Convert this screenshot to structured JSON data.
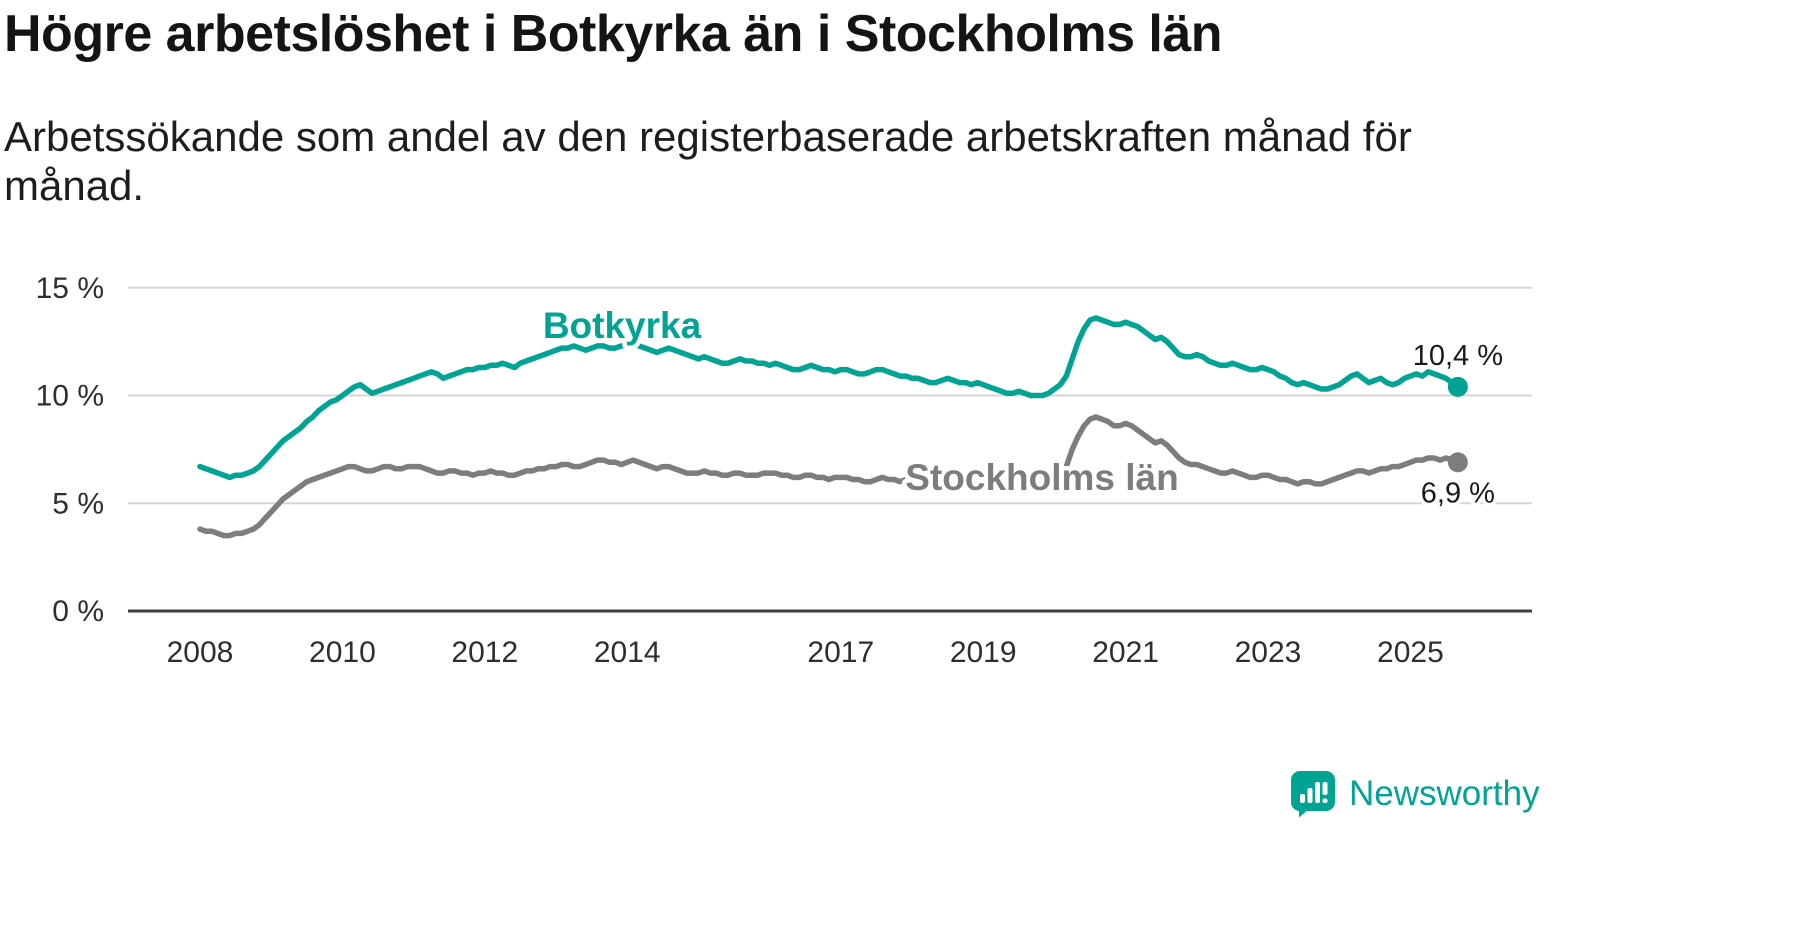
{
  "header": {
    "title": "Högre arbetslöshet i Botkyrka än i Stockholms län",
    "subtitle": "Arbetssökande som andel av den registerbaserade arbetskraften månad för månad."
  },
  "footer": {
    "brand": "Newsworthy",
    "logo_icon": "bar-chart-speech-bubble-icon"
  },
  "colors": {
    "botkyrka": "#00a394",
    "stockholm": "#7d7d7d",
    "grid": "#d6d6d6",
    "axis": "#3f3f3f",
    "tick_text": "#2e2e2e",
    "brand_teal": "#00a394"
  },
  "chart_data": {
    "type": "line",
    "title": "Högre arbetslöshet i Botkyrka än i Stockholms län",
    "subtitle": "Arbetssökande som andel av den registerbaserade arbetskraften månad för månad.",
    "x_start_year": 2008,
    "points_per_year": 12,
    "xticks": [
      2008,
      2010,
      2012,
      2014,
      2017,
      2019,
      2021,
      2023,
      2025
    ],
    "ylim": [
      0,
      15
    ],
    "yticks": [
      0,
      5,
      10,
      15
    ],
    "ytick_labels": [
      "0 %",
      "5 %",
      "10 %",
      "15 %"
    ],
    "grid": "horizontal-only",
    "legend_position": "inline-labels",
    "series": [
      {
        "name": "Botkyrka",
        "color": "#00a394",
        "end_label": "10,4 %",
        "last_value": 10.4,
        "values": [
          6.7,
          6.6,
          6.5,
          6.4,
          6.3,
          6.2,
          6.3,
          6.3,
          6.4,
          6.5,
          6.7,
          7.0,
          7.3,
          7.6,
          7.9,
          8.1,
          8.3,
          8.5,
          8.8,
          9.0,
          9.3,
          9.5,
          9.7,
          9.8,
          10.0,
          10.2,
          10.4,
          10.5,
          10.3,
          10.1,
          10.2,
          10.3,
          10.4,
          10.5,
          10.6,
          10.7,
          10.8,
          10.9,
          11.0,
          11.1,
          11.0,
          10.8,
          10.9,
          11.0,
          11.1,
          11.2,
          11.2,
          11.3,
          11.3,
          11.4,
          11.4,
          11.5,
          11.4,
          11.3,
          11.5,
          11.6,
          11.7,
          11.8,
          11.9,
          12.0,
          12.1,
          12.2,
          12.2,
          12.3,
          12.2,
          12.1,
          12.2,
          12.3,
          12.3,
          12.2,
          12.2,
          12.3,
          12.3,
          12.4,
          12.3,
          12.2,
          12.1,
          12.0,
          12.1,
          12.2,
          12.1,
          12.0,
          11.9,
          11.8,
          11.7,
          11.8,
          11.7,
          11.6,
          11.5,
          11.5,
          11.6,
          11.7,
          11.6,
          11.6,
          11.5,
          11.5,
          11.4,
          11.5,
          11.4,
          11.3,
          11.2,
          11.2,
          11.3,
          11.4,
          11.3,
          11.2,
          11.2,
          11.1,
          11.2,
          11.2,
          11.1,
          11.0,
          11.0,
          11.1,
          11.2,
          11.2,
          11.1,
          11.0,
          10.9,
          10.9,
          10.8,
          10.8,
          10.7,
          10.6,
          10.6,
          10.7,
          10.8,
          10.7,
          10.6,
          10.6,
          10.5,
          10.6,
          10.5,
          10.4,
          10.3,
          10.2,
          10.1,
          10.1,
          10.2,
          10.1,
          10.0,
          10.0,
          10.0,
          10.1,
          10.3,
          10.5,
          10.9,
          11.7,
          12.5,
          13.1,
          13.5,
          13.6,
          13.5,
          13.4,
          13.3,
          13.3,
          13.4,
          13.3,
          13.2,
          13.0,
          12.8,
          12.6,
          12.7,
          12.5,
          12.2,
          11.9,
          11.8,
          11.8,
          11.9,
          11.8,
          11.6,
          11.5,
          11.4,
          11.4,
          11.5,
          11.4,
          11.3,
          11.2,
          11.2,
          11.3,
          11.2,
          11.1,
          10.9,
          10.8,
          10.6,
          10.5,
          10.6,
          10.5,
          10.4,
          10.3,
          10.3,
          10.4,
          10.5,
          10.7,
          10.9,
          11.0,
          10.8,
          10.6,
          10.7,
          10.8,
          10.6,
          10.5,
          10.6,
          10.8,
          10.9,
          11.0,
          10.9,
          11.1,
          11.0,
          10.9,
          10.8,
          10.6,
          10.4
        ]
      },
      {
        "name": "Stockholms län",
        "color": "#7d7d7d",
        "end_label": "6,9 %",
        "last_value": 6.9,
        "values": [
          3.8,
          3.7,
          3.7,
          3.6,
          3.5,
          3.5,
          3.6,
          3.6,
          3.7,
          3.8,
          4.0,
          4.3,
          4.6,
          4.9,
          5.2,
          5.4,
          5.6,
          5.8,
          6.0,
          6.1,
          6.2,
          6.3,
          6.4,
          6.5,
          6.6,
          6.7,
          6.7,
          6.6,
          6.5,
          6.5,
          6.6,
          6.7,
          6.7,
          6.6,
          6.6,
          6.7,
          6.7,
          6.7,
          6.6,
          6.5,
          6.4,
          6.4,
          6.5,
          6.5,
          6.4,
          6.4,
          6.3,
          6.4,
          6.4,
          6.5,
          6.4,
          6.4,
          6.3,
          6.3,
          6.4,
          6.5,
          6.5,
          6.6,
          6.6,
          6.7,
          6.7,
          6.8,
          6.8,
          6.7,
          6.7,
          6.8,
          6.9,
          7.0,
          7.0,
          6.9,
          6.9,
          6.8,
          6.9,
          7.0,
          6.9,
          6.8,
          6.7,
          6.6,
          6.7,
          6.7,
          6.6,
          6.5,
          6.4,
          6.4,
          6.4,
          6.5,
          6.4,
          6.4,
          6.3,
          6.3,
          6.4,
          6.4,
          6.3,
          6.3,
          6.3,
          6.4,
          6.4,
          6.4,
          6.3,
          6.3,
          6.2,
          6.2,
          6.3,
          6.3,
          6.2,
          6.2,
          6.1,
          6.2,
          6.2,
          6.2,
          6.1,
          6.1,
          6.0,
          6.0,
          6.1,
          6.2,
          6.1,
          6.1,
          6.0,
          6.1,
          6.1,
          6.1,
          6.0,
          6.0,
          5.9,
          6.0,
          6.1,
          6.1,
          6.0,
          6.0,
          6.0,
          6.0,
          6.0,
          6.0,
          5.9,
          5.9,
          5.8,
          5.9,
          6.0,
          5.9,
          5.9,
          5.9,
          5.9,
          6.0,
          6.1,
          6.3,
          6.7,
          7.5,
          8.1,
          8.6,
          8.9,
          9.0,
          8.9,
          8.8,
          8.6,
          8.6,
          8.7,
          8.6,
          8.4,
          8.2,
          8.0,
          7.8,
          7.9,
          7.7,
          7.4,
          7.1,
          6.9,
          6.8,
          6.8,
          6.7,
          6.6,
          6.5,
          6.4,
          6.4,
          6.5,
          6.4,
          6.3,
          6.2,
          6.2,
          6.3,
          6.3,
          6.2,
          6.1,
          6.1,
          6.0,
          5.9,
          6.0,
          6.0,
          5.9,
          5.9,
          6.0,
          6.1,
          6.2,
          6.3,
          6.4,
          6.5,
          6.5,
          6.4,
          6.5,
          6.6,
          6.6,
          6.7,
          6.7,
          6.8,
          6.9,
          7.0,
          7.0,
          7.1,
          7.1,
          7.0,
          7.1,
          7.0,
          6.9
        ]
      }
    ]
  }
}
